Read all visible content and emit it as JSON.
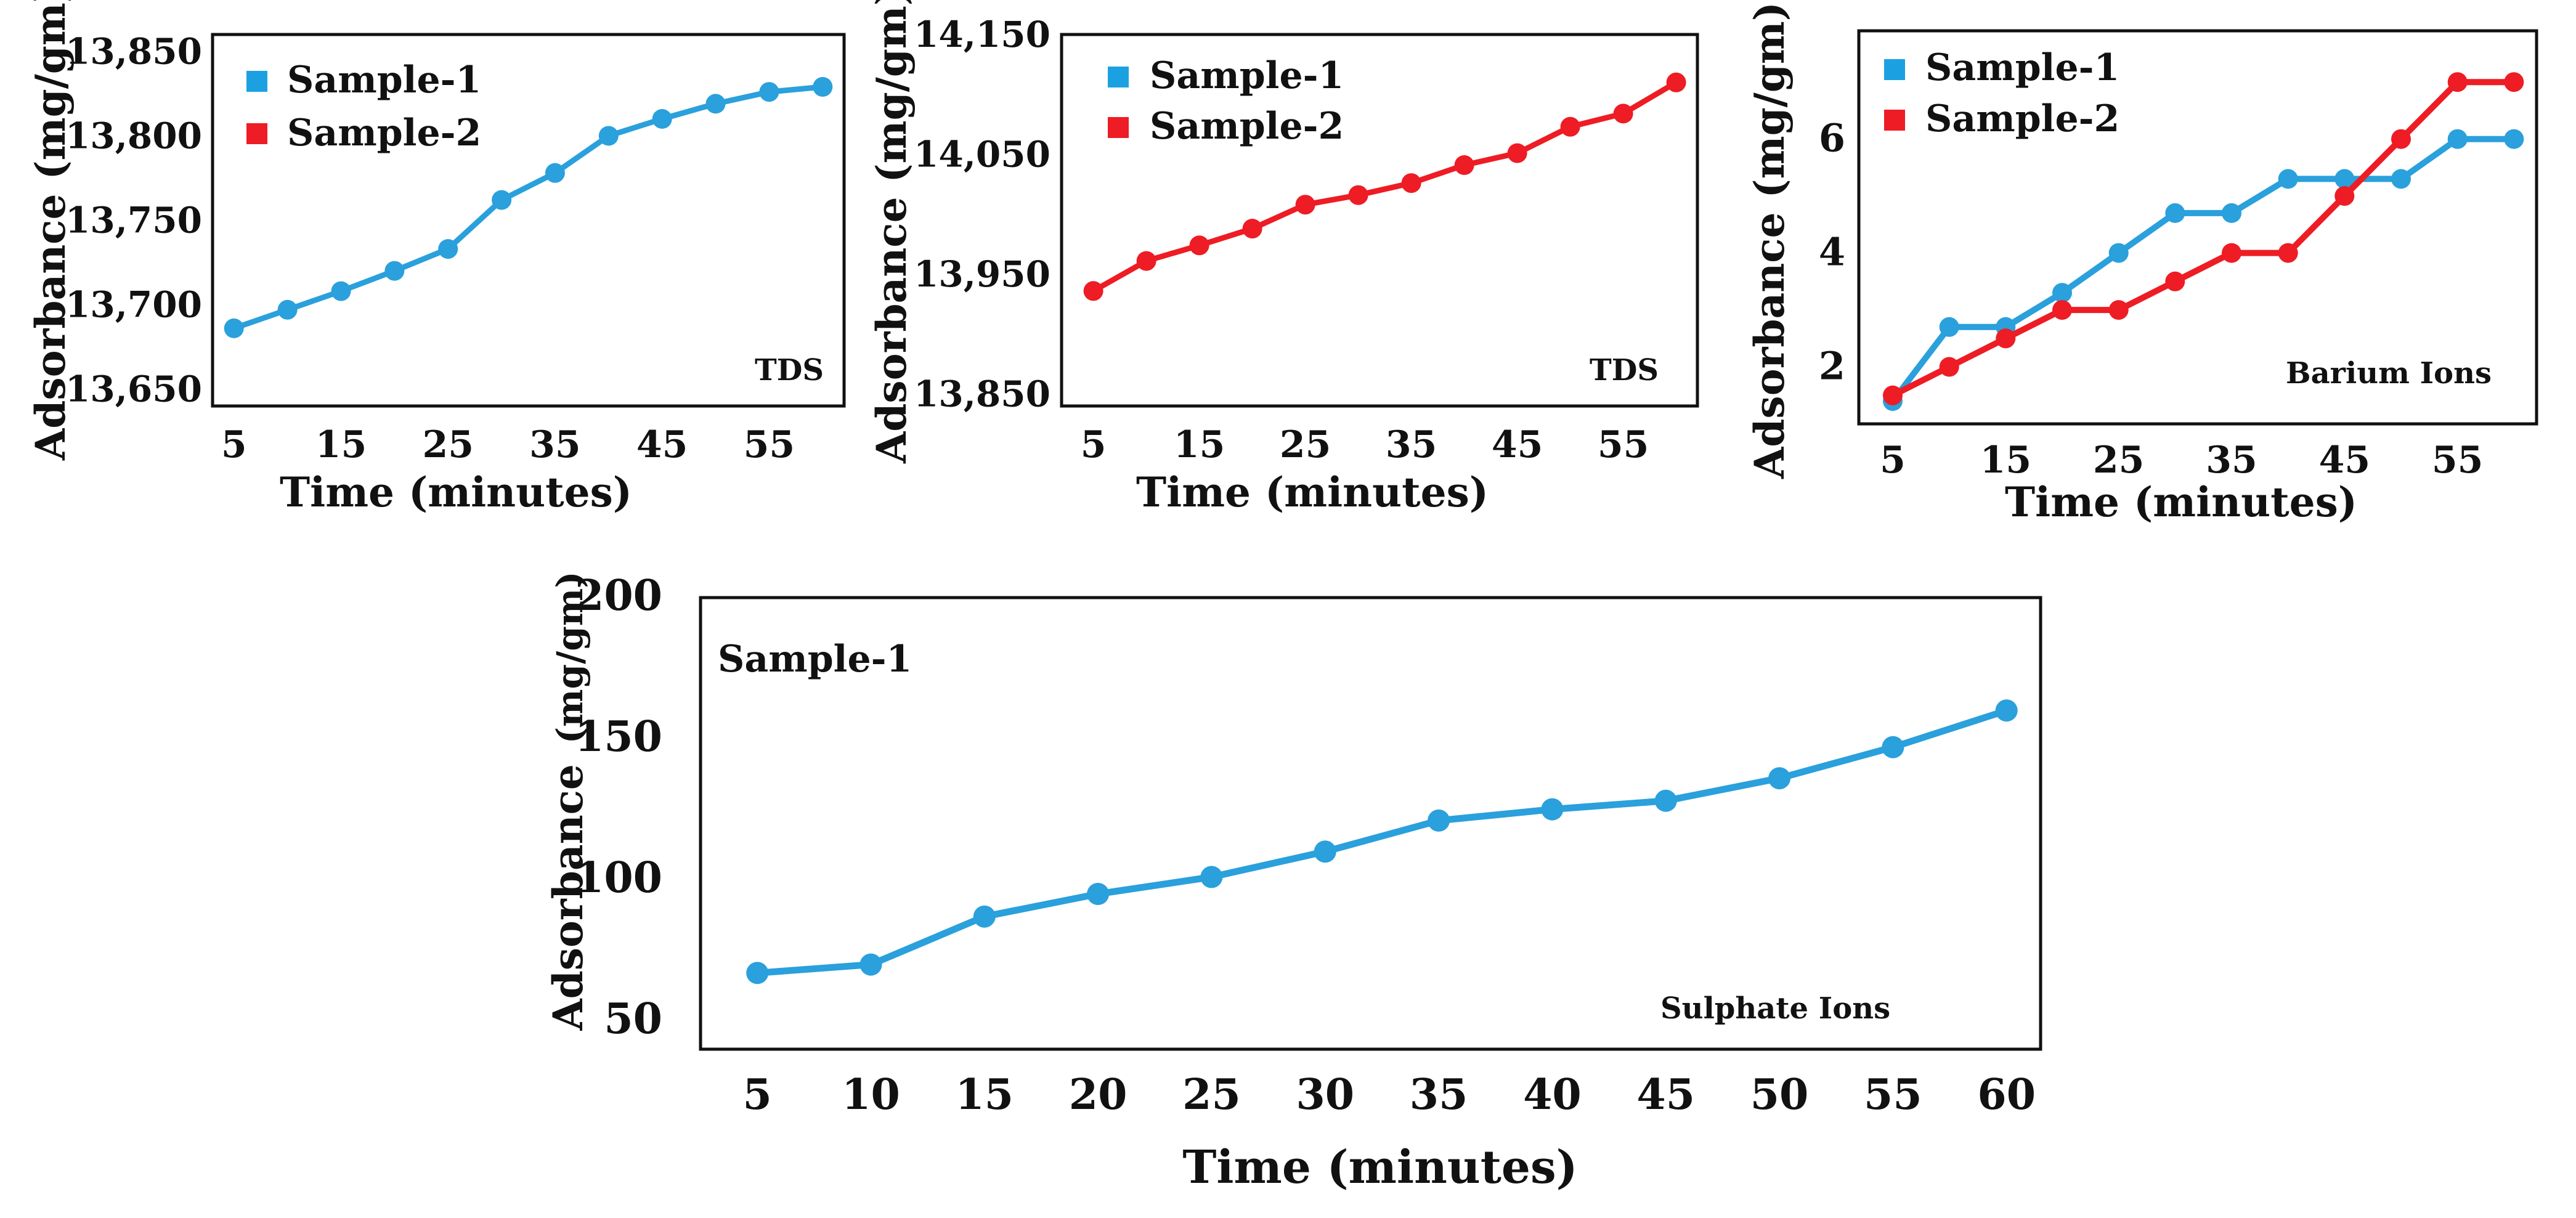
{
  "chart_data": [
    {
      "id": "tds1",
      "type": "line",
      "annotation": "TDS",
      "xlabel": "Time (minutes)",
      "ylabel": "Adsorbance (mg/gm)",
      "xlim": [
        3,
        62
      ],
      "ylim": [
        13640,
        13860
      ],
      "x_ticks": [
        5,
        15,
        25,
        35,
        45,
        55
      ],
      "y_ticks": [
        13650,
        13700,
        13750,
        13800,
        13850
      ],
      "y_tick_labels": [
        "13,650",
        "13,700",
        "13,750",
        "13,800",
        "13,850"
      ],
      "x_tick_labels": [
        "5",
        "15",
        "25",
        "35",
        "45",
        "55"
      ],
      "legend": [
        {
          "label": "Sample-1",
          "color": "#1ba1e2"
        },
        {
          "label": "Sample-2",
          "color": "#ee1c24"
        }
      ],
      "series": [
        {
          "name": "Sample-1",
          "color": "#2aa0dc",
          "x": [
            5,
            10,
            15,
            20,
            25,
            30,
            35,
            40,
            45,
            50,
            55,
            60
          ],
          "values": [
            13686,
            13697,
            13708,
            13720,
            13733,
            13762,
            13778,
            13800,
            13810,
            13819,
            13826,
            13829
          ]
        }
      ]
    },
    {
      "id": "tds2",
      "type": "line",
      "annotation": "TDS",
      "xlabel": "Time (minutes)",
      "ylabel": "Adsorbance (mg/gm)",
      "xlim": [
        2,
        62
      ],
      "ylim": [
        13840,
        14150
      ],
      "x_ticks": [
        5,
        15,
        25,
        35,
        45,
        55
      ],
      "y_ticks": [
        13850,
        13950,
        14050,
        14150
      ],
      "y_tick_labels": [
        "13,850",
        "13,950",
        "14,050",
        "14,150"
      ],
      "x_tick_labels": [
        "5",
        "15",
        "25",
        "35",
        "45",
        "55"
      ],
      "legend": [
        {
          "label": "Sample-1",
          "color": "#1ba1e2"
        },
        {
          "label": "Sample-2",
          "color": "#ee1c24"
        }
      ],
      "series": [
        {
          "name": "Sample-2",
          "color": "#ee1c24",
          "x": [
            5,
            10,
            15,
            20,
            25,
            30,
            35,
            40,
            45,
            50,
            55,
            60
          ],
          "values": [
            13936,
            13961,
            13974,
            13988,
            14008,
            14016,
            14026,
            14041,
            14051,
            14073,
            14084,
            14110
          ]
        }
      ]
    },
    {
      "id": "barium",
      "type": "line",
      "annotation": "Barium Ions",
      "xlabel": "Time (minutes)",
      "ylabel": "Adsorbance (mg/gm)",
      "xlim": [
        2,
        62
      ],
      "ylim": [
        1,
        7.9
      ],
      "x_ticks": [
        5,
        15,
        25,
        35,
        45,
        55
      ],
      "y_ticks": [
        2,
        4,
        6
      ],
      "y_tick_labels": [
        "2",
        "4",
        "6"
      ],
      "x_tick_labels": [
        "5",
        "15",
        "25",
        "35",
        "45",
        "55"
      ],
      "legend": [
        {
          "label": "Sample-1",
          "color": "#1ba1e2"
        },
        {
          "label": "Sample-2",
          "color": "#ee1c24"
        }
      ],
      "series": [
        {
          "name": "Sample-1",
          "color": "#2aa0dc",
          "x": [
            5,
            10,
            15,
            20,
            25,
            30,
            35,
            40,
            45,
            50,
            55,
            60
          ],
          "values": [
            1.4,
            2.7,
            2.7,
            3.3,
            4.0,
            4.7,
            4.7,
            5.3,
            5.3,
            5.3,
            6.0,
            6.0
          ]
        },
        {
          "name": "Sample-2",
          "color": "#ee1c24",
          "x": [
            5,
            10,
            15,
            20,
            25,
            30,
            35,
            40,
            45,
            50,
            55,
            60
          ],
          "values": [
            1.5,
            2.0,
            2.5,
            3.0,
            3.0,
            3.5,
            4.0,
            4.0,
            5.0,
            6.0,
            7.0,
            7.0
          ]
        }
      ]
    },
    {
      "id": "sulphate",
      "type": "line",
      "annotation": "Sulphate Ions",
      "xlabel": "Time (minutes)",
      "ylabel": "Adsorbance",
      "ylabel_unit": "(mg/gm)",
      "xlim": [
        2.5,
        61.5
      ],
      "ylim": [
        40,
        200
      ],
      "x_ticks": [
        5,
        10,
        15,
        20,
        25,
        30,
        35,
        40,
        45,
        50,
        55,
        60
      ],
      "y_ticks": [
        50,
        100,
        150,
        200
      ],
      "y_tick_labels": [
        "50",
        "100",
        "150",
        "200"
      ],
      "x_tick_labels": [
        "5",
        "10",
        "15",
        "20",
        "25",
        "30",
        "35",
        "40",
        "45",
        "50",
        "55",
        "60"
      ],
      "legend": [
        {
          "label": "Sample-1",
          "color": "none"
        }
      ],
      "series": [
        {
          "name": "Sample-1",
          "color": "#2aa0dc",
          "x": [
            5,
            10,
            15,
            20,
            25,
            30,
            35,
            40,
            45,
            50,
            55,
            60
          ],
          "values": [
            67,
            70,
            87,
            95,
            101,
            110,
            121,
            125,
            128,
            136,
            147,
            160
          ]
        }
      ]
    }
  ]
}
